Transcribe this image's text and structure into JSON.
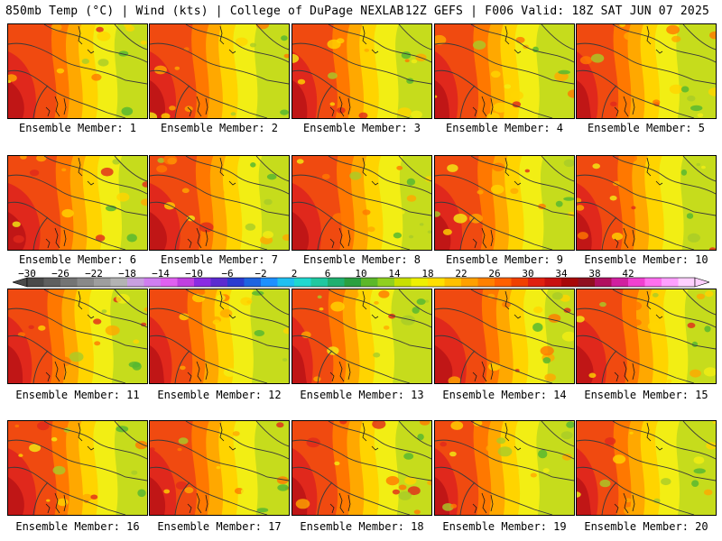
{
  "header": {
    "left": "850mb Temp (°C) | Wind (kts) | College of DuPage NEXLAB",
    "right": "12Z GEFS | F006 Valid: 18Z SAT JUN 07 2025"
  },
  "members": [
    {
      "label": "Ensemble Member: 1"
    },
    {
      "label": "Ensemble Member: 2"
    },
    {
      "label": "Ensemble Member: 3"
    },
    {
      "label": "Ensemble Member: 4"
    },
    {
      "label": "Ensemble Member: 5"
    },
    {
      "label": "Ensemble Member: 6"
    },
    {
      "label": "Ensemble Member: 7"
    },
    {
      "label": "Ensemble Member: 8"
    },
    {
      "label": "Ensemble Member: 9"
    },
    {
      "label": "Ensemble Member: 10"
    },
    {
      "label": "Ensemble Member: 11"
    },
    {
      "label": "Ensemble Member: 12"
    },
    {
      "label": "Ensemble Member: 13"
    },
    {
      "label": "Ensemble Member: 14"
    },
    {
      "label": "Ensemble Member: 15"
    },
    {
      "label": "Ensemble Member: 16"
    },
    {
      "label": "Ensemble Member: 17"
    },
    {
      "label": "Ensemble Member: 18"
    },
    {
      "label": "Ensemble Member: 19"
    },
    {
      "label": "Ensemble Member: 20"
    }
  ],
  "colorbar": {
    "ticks": [
      "−30",
      "−26",
      "−22",
      "−18",
      "−14",
      "−10",
      "−6",
      "−2",
      "2",
      "6",
      "10",
      "14",
      "18",
      "22",
      "26",
      "30",
      "34",
      "38",
      "42"
    ],
    "colors": [
      "#4a4a4a",
      "#5f5f5f",
      "#747474",
      "#898989",
      "#9e9e9e",
      "#b3b3b3",
      "#c8a0e0",
      "#d07ef0",
      "#e060f0",
      "#c040e0",
      "#8a2be2",
      "#5b2bd0",
      "#2a3bd0",
      "#1e64e0",
      "#1e90ff",
      "#20c0f0",
      "#20d8d0",
      "#20c8a0",
      "#20b070",
      "#2aa040",
      "#5cb82a",
      "#90d020",
      "#c8e000",
      "#eef000",
      "#ffe000",
      "#ffc000",
      "#ffa000",
      "#ff8000",
      "#ff6000",
      "#f04000",
      "#e02010",
      "#c81010",
      "#a80808",
      "#901020",
      "#b01060",
      "#d020a0",
      "#f040d0",
      "#ff70f0",
      "#ffa0ff",
      "#ffd0ff"
    ]
  }
}
